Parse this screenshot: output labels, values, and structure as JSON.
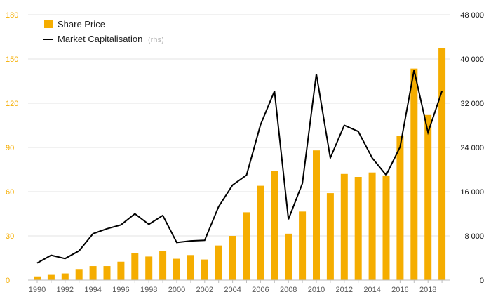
{
  "chart_data": {
    "type": "bar",
    "x": [
      1990,
      1991,
      1992,
      1993,
      1994,
      1995,
      1996,
      1997,
      1998,
      1999,
      2000,
      2001,
      2002,
      2003,
      2004,
      2005,
      2006,
      2007,
      2008,
      2009,
      2010,
      2011,
      2012,
      2013,
      2014,
      2015,
      2016,
      2017,
      2018,
      2019
    ],
    "x_tick_labels": [
      "1990",
      "1992",
      "1994",
      "1996",
      "1998",
      "2000",
      "2002",
      "2004",
      "2006",
      "2008",
      "2010",
      "2012",
      "2014",
      "2016",
      "2018"
    ],
    "x_tick_values": [
      1990,
      1992,
      1994,
      1996,
      1998,
      2000,
      2002,
      2004,
      2006,
      2008,
      2010,
      2012,
      2014,
      2016,
      2018
    ],
    "series": [
      {
        "name": "Share Price",
        "type": "bar",
        "axis": "left",
        "color": "#f5ad00",
        "values": [
          2.5,
          4,
          4.5,
          7.5,
          9.5,
          9.5,
          12.5,
          18.5,
          16,
          20,
          14.5,
          17,
          14,
          23.5,
          30,
          46,
          64,
          74,
          31.5,
          46.5,
          88,
          59,
          72,
          70,
          73,
          71,
          98,
          143.5,
          112,
          157.5
        ]
      },
      {
        "name": "Market Capitalisation",
        "name_note": "(rhs)",
        "type": "line",
        "axis": "right",
        "color": "#000000",
        "values": [
          3100,
          4500,
          3900,
          5300,
          8400,
          9300,
          10000,
          12000,
          10100,
          11700,
          6800,
          7100,
          7200,
          13300,
          17200,
          19000,
          28100,
          34200,
          11000,
          17500,
          37300,
          22100,
          28000,
          26900,
          22100,
          19000,
          24100,
          38000,
          26700,
          34200
        ]
      }
    ],
    "y_left": {
      "ylim": [
        0,
        180
      ],
      "ticks": [
        "0",
        "30",
        "60",
        "90",
        "120",
        "150",
        "180"
      ],
      "tick_values": [
        0,
        30,
        60,
        90,
        120,
        150,
        180
      ],
      "color": "#f5ad00"
    },
    "y_right": {
      "ylim": [
        0,
        48000
      ],
      "ticks": [
        "0",
        "8 000",
        "16 000",
        "24 000",
        "32 000",
        "40 000",
        "48 000"
      ],
      "tick_values": [
        0,
        8000,
        16000,
        24000,
        32000,
        40000,
        48000
      ],
      "color": "#111111"
    },
    "grid": true,
    "grid_color": "#e3e3e3",
    "legend_position": "top-left"
  }
}
